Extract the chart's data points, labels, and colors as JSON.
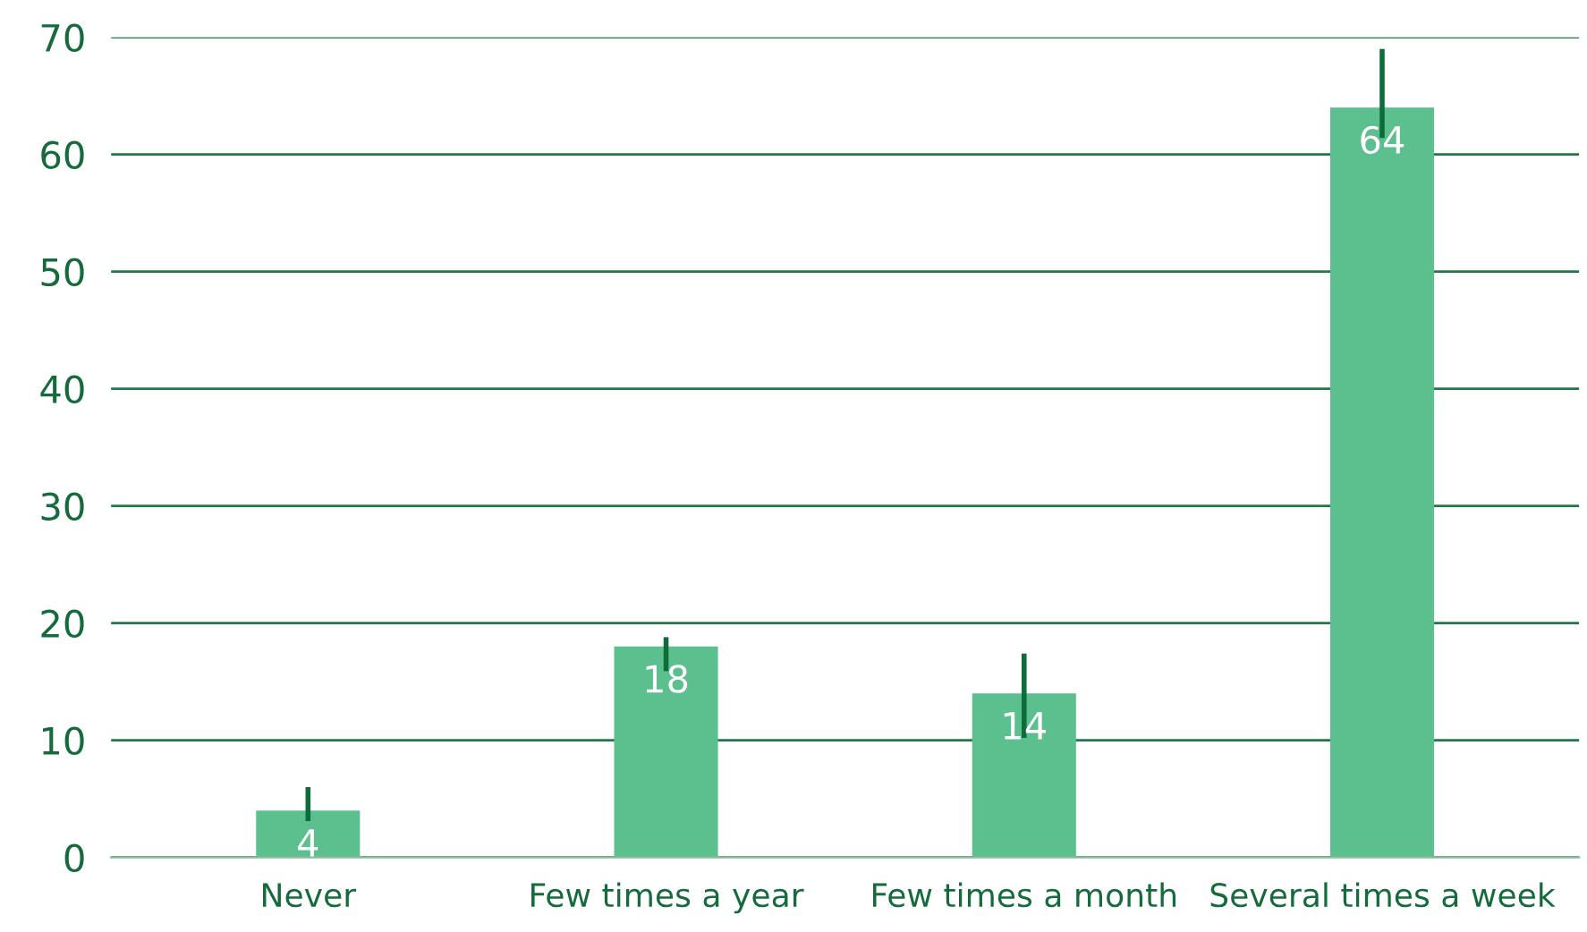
{
  "chart_data": {
    "type": "bar",
    "categories": [
      "Never",
      "Few times a year",
      "Few times a month",
      "Several times a week"
    ],
    "values": [
      4,
      18,
      14,
      64
    ],
    "errors": [
      [
        3.1,
        6.0
      ],
      [
        15.9,
        18.8
      ],
      [
        10.2,
        17.4
      ],
      [
        61.4,
        69.0
      ]
    ],
    "color": "#5bbf8e",
    "data_labels": true,
    "ylim": [
      0,
      70
    ],
    "yticks": [
      0,
      10,
      20,
      30,
      40,
      50,
      60,
      70
    ],
    "grid": "y"
  }
}
